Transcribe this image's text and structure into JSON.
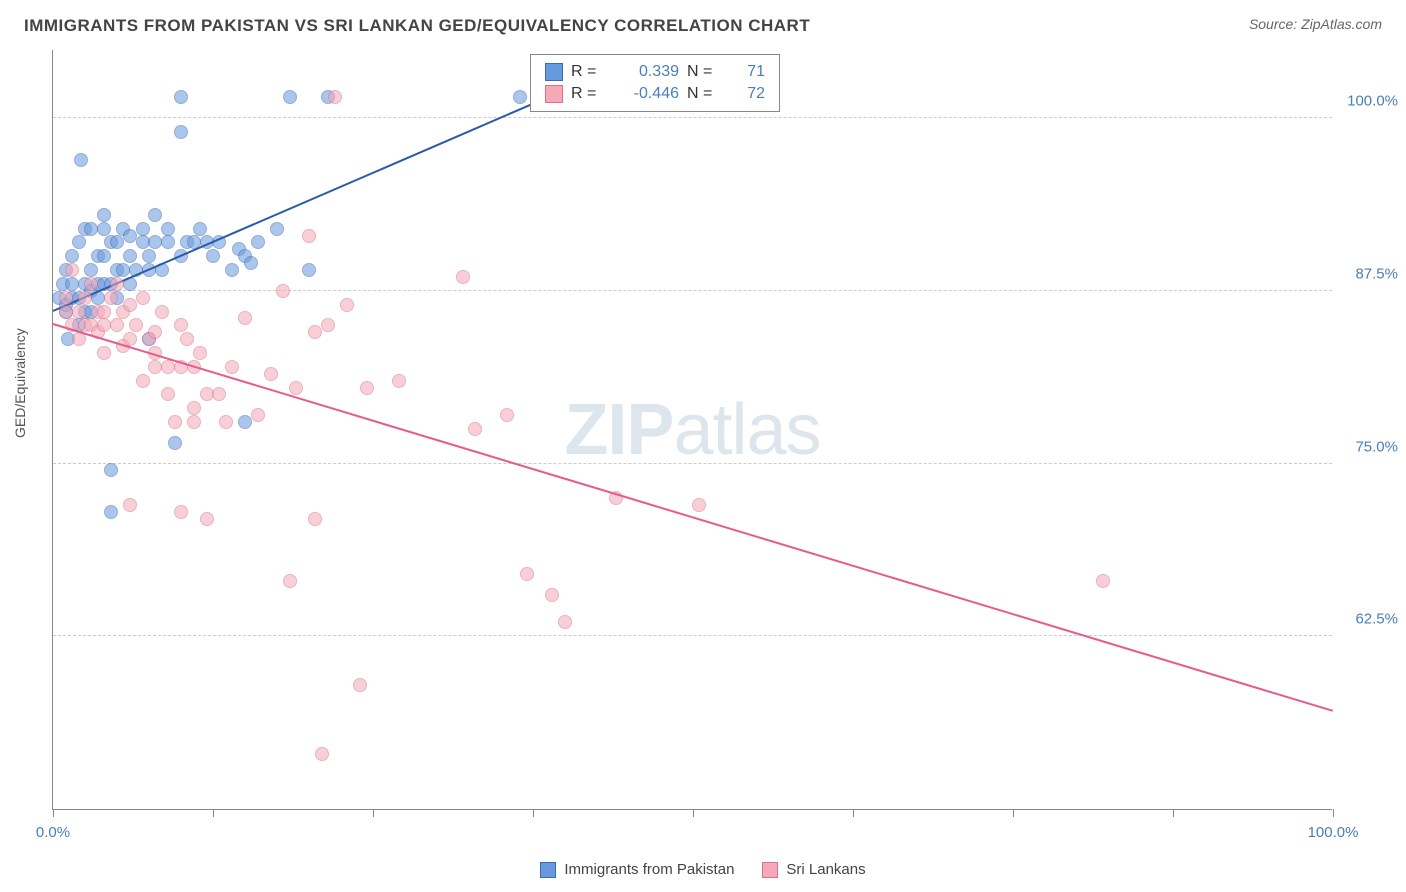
{
  "header": {
    "title": "IMMIGRANTS FROM PAKISTAN VS SRI LANKAN GED/EQUIVALENCY CORRELATION CHART",
    "source": "Source: ZipAtlas.com"
  },
  "ylabel": "GED/Equivalency",
  "watermark_a": "ZIP",
  "watermark_b": "atlas",
  "chart": {
    "type": "scatter",
    "xlim": [
      0,
      100
    ],
    "ylim": [
      50,
      105
    ],
    "x_tick_positions": [
      0,
      12.5,
      25,
      37.5,
      50,
      62.5,
      75,
      87.5,
      100
    ],
    "x_tick_labels": {
      "0": "0.0%",
      "100": "100.0%"
    },
    "y_gridlines": [
      62.5,
      75,
      87.5,
      100
    ],
    "y_tick_labels": {
      "62.5": "62.5%",
      "75": "75.0%",
      "87.5": "87.5%",
      "100": "100.0%"
    },
    "background_color": "#ffffff",
    "grid_color": "#cccccc",
    "axis_color": "#888888",
    "tick_label_color": "#4a7ebb",
    "marker_radius": 7,
    "marker_opacity": 0.55,
    "series": [
      {
        "name": "Immigrants from Pakistan",
        "color": "#6699dd",
        "border": "#3d6bb3",
        "R": "0.339",
        "N": "71",
        "trend": {
          "x1": 0,
          "y1": 86,
          "x2": 45,
          "y2": 104,
          "color": "#2b5aa8",
          "width": 2
        },
        "points": [
          [
            0.5,
            87
          ],
          [
            0.8,
            88
          ],
          [
            1,
            86
          ],
          [
            1,
            89
          ],
          [
            1,
            86.5
          ],
          [
            1.2,
            84
          ],
          [
            1.5,
            87
          ],
          [
            1.5,
            90
          ],
          [
            1.5,
            88
          ],
          [
            2,
            87
          ],
          [
            2,
            85
          ],
          [
            2,
            91
          ],
          [
            2.2,
            97
          ],
          [
            2.5,
            88
          ],
          [
            2.5,
            86
          ],
          [
            2.5,
            92
          ],
          [
            3,
            89
          ],
          [
            3,
            87.5
          ],
          [
            3,
            92
          ],
          [
            3,
            86
          ],
          [
            3.5,
            90
          ],
          [
            3.5,
            88
          ],
          [
            3.5,
            87
          ],
          [
            4,
            90
          ],
          [
            4,
            88
          ],
          [
            4,
            92
          ],
          [
            4,
            93
          ],
          [
            4.5,
            88
          ],
          [
            4.5,
            91
          ],
          [
            4.5,
            74.5
          ],
          [
            4.5,
            71.5
          ],
          [
            5,
            91
          ],
          [
            5,
            87
          ],
          [
            5,
            89
          ],
          [
            5.5,
            92
          ],
          [
            5.5,
            89
          ],
          [
            6,
            90
          ],
          [
            6,
            91.5
          ],
          [
            6.5,
            89
          ],
          [
            6,
            88
          ],
          [
            7,
            91
          ],
          [
            7,
            92
          ],
          [
            7.5,
            89
          ],
          [
            7.5,
            84
          ],
          [
            7.5,
            90
          ],
          [
            8,
            91
          ],
          [
            8,
            93
          ],
          [
            8.5,
            89
          ],
          [
            9,
            91
          ],
          [
            9,
            92
          ],
          [
            9.5,
            76.5
          ],
          [
            10,
            101.5
          ],
          [
            10,
            99
          ],
          [
            10,
            90
          ],
          [
            10.5,
            91
          ],
          [
            11,
            91
          ],
          [
            11.5,
            92
          ],
          [
            12,
            91
          ],
          [
            12.5,
            90
          ],
          [
            13,
            91
          ],
          [
            14,
            89
          ],
          [
            14.5,
            90.5
          ],
          [
            15,
            90
          ],
          [
            15,
            78
          ],
          [
            15.5,
            89.5
          ],
          [
            16,
            91
          ],
          [
            17.5,
            92
          ],
          [
            18.5,
            101.5
          ],
          [
            20,
            89
          ],
          [
            21.5,
            101.5
          ],
          [
            36.5,
            101.5
          ]
        ]
      },
      {
        "name": "Sri Lankans",
        "color": "#f4a8b8",
        "border": "#e0708a",
        "R": "-0.446",
        "N": "72",
        "trend": {
          "x1": 0,
          "y1": 85,
          "x2": 100,
          "y2": 57,
          "color": "#e85a8a",
          "width": 2
        },
        "points": [
          [
            1,
            87
          ],
          [
            1,
            86
          ],
          [
            1.5,
            85
          ],
          [
            1.5,
            89
          ],
          [
            2,
            86
          ],
          [
            2,
            84
          ],
          [
            2.5,
            87
          ],
          [
            2.5,
            85
          ],
          [
            3,
            88
          ],
          [
            3,
            85
          ],
          [
            3.5,
            86
          ],
          [
            3.5,
            84.5
          ],
          [
            4,
            86
          ],
          [
            4,
            83
          ],
          [
            4,
            85
          ],
          [
            4.5,
            87
          ],
          [
            5,
            85
          ],
          [
            5,
            88
          ],
          [
            5.5,
            86
          ],
          [
            5.5,
            83.5
          ],
          [
            6,
            84
          ],
          [
            6,
            86.5
          ],
          [
            6,
            72
          ],
          [
            6.5,
            85
          ],
          [
            7,
            87
          ],
          [
            7,
            81
          ],
          [
            7.5,
            84
          ],
          [
            8,
            82
          ],
          [
            8,
            84.5
          ],
          [
            8,
            83
          ],
          [
            8.5,
            86
          ],
          [
            9,
            80
          ],
          [
            9,
            82
          ],
          [
            9.5,
            78
          ],
          [
            10,
            82
          ],
          [
            10,
            85
          ],
          [
            10,
            71.5
          ],
          [
            10.5,
            84
          ],
          [
            11,
            79
          ],
          [
            11,
            78
          ],
          [
            11,
            82
          ],
          [
            11.5,
            83
          ],
          [
            12,
            80
          ],
          [
            12,
            71
          ],
          [
            13,
            80
          ],
          [
            13.5,
            78
          ],
          [
            14,
            82
          ],
          [
            15,
            85.5
          ],
          [
            16,
            78.5
          ],
          [
            17,
            81.5
          ],
          [
            18,
            87.5
          ],
          [
            18.5,
            66.5
          ],
          [
            19,
            80.5
          ],
          [
            20,
            91.5
          ],
          [
            20.5,
            84.5
          ],
          [
            20.5,
            71
          ],
          [
            21,
            54
          ],
          [
            21.5,
            85
          ],
          [
            22,
            101.5
          ],
          [
            23,
            86.5
          ],
          [
            24,
            59
          ],
          [
            24.5,
            80.5
          ],
          [
            27,
            81
          ],
          [
            32,
            88.5
          ],
          [
            33,
            77.5
          ],
          [
            35.5,
            78.5
          ],
          [
            37,
            67
          ],
          [
            39,
            65.5
          ],
          [
            40,
            63.5
          ],
          [
            44,
            72.5
          ],
          [
            50.5,
            72
          ],
          [
            82,
            66.5
          ]
        ]
      }
    ]
  },
  "legend_top": {
    "r_label": "R =",
    "n_label": "N ="
  },
  "legend_bottom": [
    {
      "label": "Immigrants from Pakistan",
      "color": "#6699dd",
      "border": "#3d6bb3"
    },
    {
      "label": "Sri Lankans",
      "color": "#f4a8b8",
      "border": "#e0708a"
    }
  ]
}
